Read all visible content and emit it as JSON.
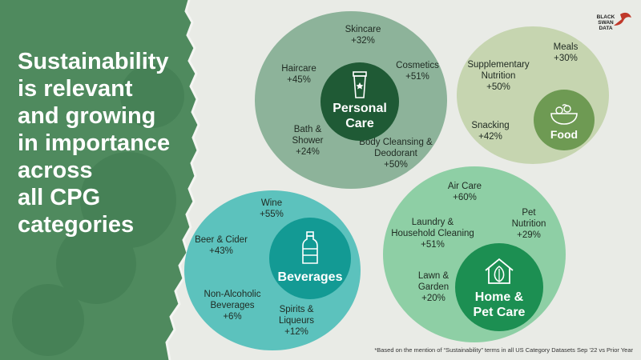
{
  "headline": "Sustainability\nis relevant\nand growing\nin importance\nacross\nall CPG\ncategories",
  "logo": {
    "text": "BLACK\nSWAN\nDATA"
  },
  "colors": {
    "panel": "#4f8a5e",
    "personal_care_bubble": "#8db39a",
    "personal_care_hub": "#1f5a35",
    "food_bubble": "#c6d5b0",
    "food_hub": "#6e9a53",
    "beverages_bubble": "#5cc2bd",
    "beverages_hub": "#139a94",
    "home_bubble": "#8ecfa5",
    "home_hub": "#1c8f52"
  },
  "categories": {
    "personal_care": {
      "name": "Personal\nCare",
      "icon": "lotion-tube-icon",
      "items": [
        {
          "name": "Skincare",
          "value": "+32%"
        },
        {
          "name": "Haircare",
          "value": "+45%"
        },
        {
          "name": "Cosmetics",
          "value": "+51%"
        },
        {
          "name": "Bath &\nShower",
          "value": "+24%"
        },
        {
          "name": "Body Cleansing &\nDeodorant",
          "value": "+50%"
        }
      ]
    },
    "food": {
      "name": "Food",
      "icon": "food-bowl-icon",
      "items": [
        {
          "name": "Meals",
          "value": "+30%"
        },
        {
          "name": "Supplementary\nNutrition",
          "value": "+50%"
        },
        {
          "name": "Snacking",
          "value": "+42%"
        }
      ]
    },
    "beverages": {
      "name": "Beverages",
      "icon": "water-bottle-icon",
      "items": [
        {
          "name": "Wine",
          "value": "+55%"
        },
        {
          "name": "Beer & Cider",
          "value": "+43%"
        },
        {
          "name": "Non-Alcoholic\nBeverages",
          "value": "+6%"
        },
        {
          "name": "Spirits &\nLiqueurs",
          "value": "+12%"
        }
      ]
    },
    "home_pet": {
      "name": "Home &\nPet Care",
      "icon": "house-leaf-icon",
      "items": [
        {
          "name": "Air Care",
          "value": "+60%"
        },
        {
          "name": "Laundry &\nHousehold Cleaning",
          "value": "+51%"
        },
        {
          "name": "Pet\nNutrition",
          "value": "+29%"
        },
        {
          "name": "Lawn &\nGarden",
          "value": "+20%"
        }
      ]
    }
  },
  "footnote": "*Based on the mention of “Sustainability” terms in all US Category Datasets Sep ’22  vs Prior Year"
}
